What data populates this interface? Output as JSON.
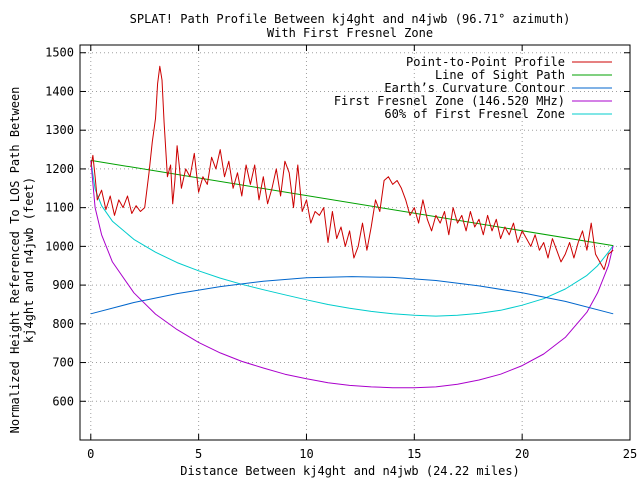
{
  "chart_data": {
    "type": "line",
    "title": "SPLAT! Path Profile Between kj4ght and n4jwb (96.71° azimuth)",
    "subtitle": "With First Fresnel Zone",
    "xlabel": "Distance Between kj4ght and n4jwb (24.22 miles)",
    "ylabel_line1": "Normalized Height Referenced To LOS Path Between",
    "ylabel_line2": "kj4ght and n4jwb (feet)",
    "xlim": [
      -0.5,
      25
    ],
    "ylim": [
      500,
      1520
    ],
    "x_ticks": [
      0,
      5,
      10,
      15,
      20,
      25
    ],
    "x_tick_labels": [
      "0",
      "5",
      "10",
      "15",
      "20",
      "25"
    ],
    "y_ticks": [
      600,
      700,
      800,
      900,
      1000,
      1100,
      1200,
      1300,
      1400,
      1500
    ],
    "y_tick_labels": [
      "600",
      "700",
      "800",
      "900",
      "1000",
      "1100",
      "1200",
      "1300",
      "1400",
      "1500"
    ],
    "grid": true,
    "legend_position": "top-right",
    "series": [
      {
        "name": "Point-to-Point Profile",
        "color": "#cc0000",
        "x": [
          0,
          0.1,
          0.2,
          0.3,
          0.5,
          0.7,
          0.9,
          1.1,
          1.3,
          1.5,
          1.7,
          1.9,
          2.1,
          2.3,
          2.5,
          2.7,
          2.85,
          3.0,
          3.1,
          3.2,
          3.3,
          3.4,
          3.55,
          3.7,
          3.8,
          3.9,
          4.0,
          4.1,
          4.2,
          4.4,
          4.6,
          4.8,
          5.0,
          5.2,
          5.4,
          5.6,
          5.8,
          6.0,
          6.2,
          6.4,
          6.6,
          6.8,
          7.0,
          7.2,
          7.4,
          7.6,
          7.8,
          8.0,
          8.2,
          8.4,
          8.6,
          8.8,
          9.0,
          9.2,
          9.4,
          9.6,
          9.8,
          10.0,
          10.2,
          10.4,
          10.6,
          10.8,
          11.0,
          11.2,
          11.4,
          11.6,
          11.8,
          12.0,
          12.2,
          12.4,
          12.6,
          12.8,
          13.0,
          13.2,
          13.4,
          13.6,
          13.8,
          14.0,
          14.2,
          14.4,
          14.6,
          14.8,
          15.0,
          15.2,
          15.4,
          15.6,
          15.8,
          16.0,
          16.2,
          16.4,
          16.6,
          16.8,
          17.0,
          17.2,
          17.4,
          17.6,
          17.8,
          18.0,
          18.2,
          18.4,
          18.6,
          18.8,
          19.0,
          19.2,
          19.4,
          19.6,
          19.8,
          20.0,
          20.2,
          20.4,
          20.6,
          20.8,
          21.0,
          21.2,
          21.4,
          21.6,
          21.8,
          22.0,
          22.2,
          22.4,
          22.6,
          22.8,
          23.0,
          23.2,
          23.4,
          23.6,
          23.8,
          24.0,
          24.22
        ],
        "y": [
          1205,
          1235,
          1180,
          1120,
          1145,
          1095,
          1130,
          1080,
          1120,
          1100,
          1130,
          1085,
          1105,
          1090,
          1100,
          1190,
          1270,
          1330,
          1420,
          1465,
          1430,
          1320,
          1180,
          1210,
          1110,
          1170,
          1260,
          1210,
          1150,
          1200,
          1180,
          1240,
          1140,
          1180,
          1160,
          1230,
          1200,
          1250,
          1180,
          1220,
          1150,
          1190,
          1130,
          1210,
          1160,
          1210,
          1120,
          1180,
          1110,
          1150,
          1200,
          1130,
          1220,
          1190,
          1100,
          1210,
          1090,
          1120,
          1060,
          1090,
          1080,
          1100,
          1010,
          1090,
          1020,
          1050,
          1000,
          1040,
          970,
          1000,
          1060,
          990,
          1050,
          1120,
          1090,
          1170,
          1180,
          1160,
          1170,
          1150,
          1120,
          1080,
          1100,
          1060,
          1120,
          1070,
          1040,
          1080,
          1060,
          1090,
          1030,
          1100,
          1060,
          1080,
          1040,
          1090,
          1050,
          1070,
          1030,
          1080,
          1040,
          1070,
          1020,
          1050,
          1030,
          1060,
          1010,
          1040,
          1020,
          1000,
          1030,
          990,
          1010,
          970,
          1020,
          990,
          960,
          980,
          1010,
          970,
          1010,
          1040,
          990,
          1060,
          980,
          960,
          940,
          980,
          990
        ]
      },
      {
        "name": "Line of Sight Path",
        "color": "#00a000",
        "x": [
          0,
          24.22
        ],
        "y": [
          1222,
          1002
        ]
      },
      {
        "name": "Earth’s Curvature Contour",
        "color": "#0066cc",
        "x": [
          0,
          2,
          4,
          6,
          8,
          10,
          12.11,
          14,
          16,
          18,
          20,
          22,
          24.22
        ],
        "y": [
          826,
          855,
          878,
          896,
          910,
          919,
          922,
          920,
          912,
          898,
          880,
          858,
          826
        ]
      },
      {
        "name": "First Fresnel Zone (146.520 MHz)",
        "color": "#aa00cc",
        "x": [
          0,
          0.2,
          0.5,
          1,
          2,
          3,
          4,
          5,
          6,
          7,
          8,
          9,
          10,
          11,
          12,
          13,
          14,
          15,
          16,
          17,
          18,
          19,
          20,
          21,
          22,
          23,
          23.5,
          24.0,
          24.22
        ],
        "y": [
          1222,
          1100,
          1030,
          960,
          880,
          825,
          785,
          752,
          725,
          703,
          686,
          670,
          658,
          648,
          641,
          637,
          635,
          635,
          637,
          644,
          655,
          670,
          692,
          722,
          765,
          830,
          880,
          950,
          1002
        ]
      },
      {
        "name": "60% of First Fresnel Zone",
        "color": "#00cccc",
        "x": [
          0,
          0.2,
          0.5,
          1,
          2,
          3,
          4,
          5,
          6,
          7,
          8,
          9,
          10,
          11,
          12,
          13,
          14,
          15,
          16,
          17,
          18,
          19,
          20,
          21,
          22,
          23,
          23.5,
          24.0,
          24.22
        ],
        "y": [
          1222,
          1148,
          1105,
          1065,
          1018,
          985,
          958,
          937,
          918,
          902,
          888,
          875,
          862,
          850,
          840,
          832,
          826,
          822,
          820,
          822,
          827,
          835,
          848,
          865,
          890,
          925,
          950,
          985,
          1002
        ]
      }
    ]
  }
}
